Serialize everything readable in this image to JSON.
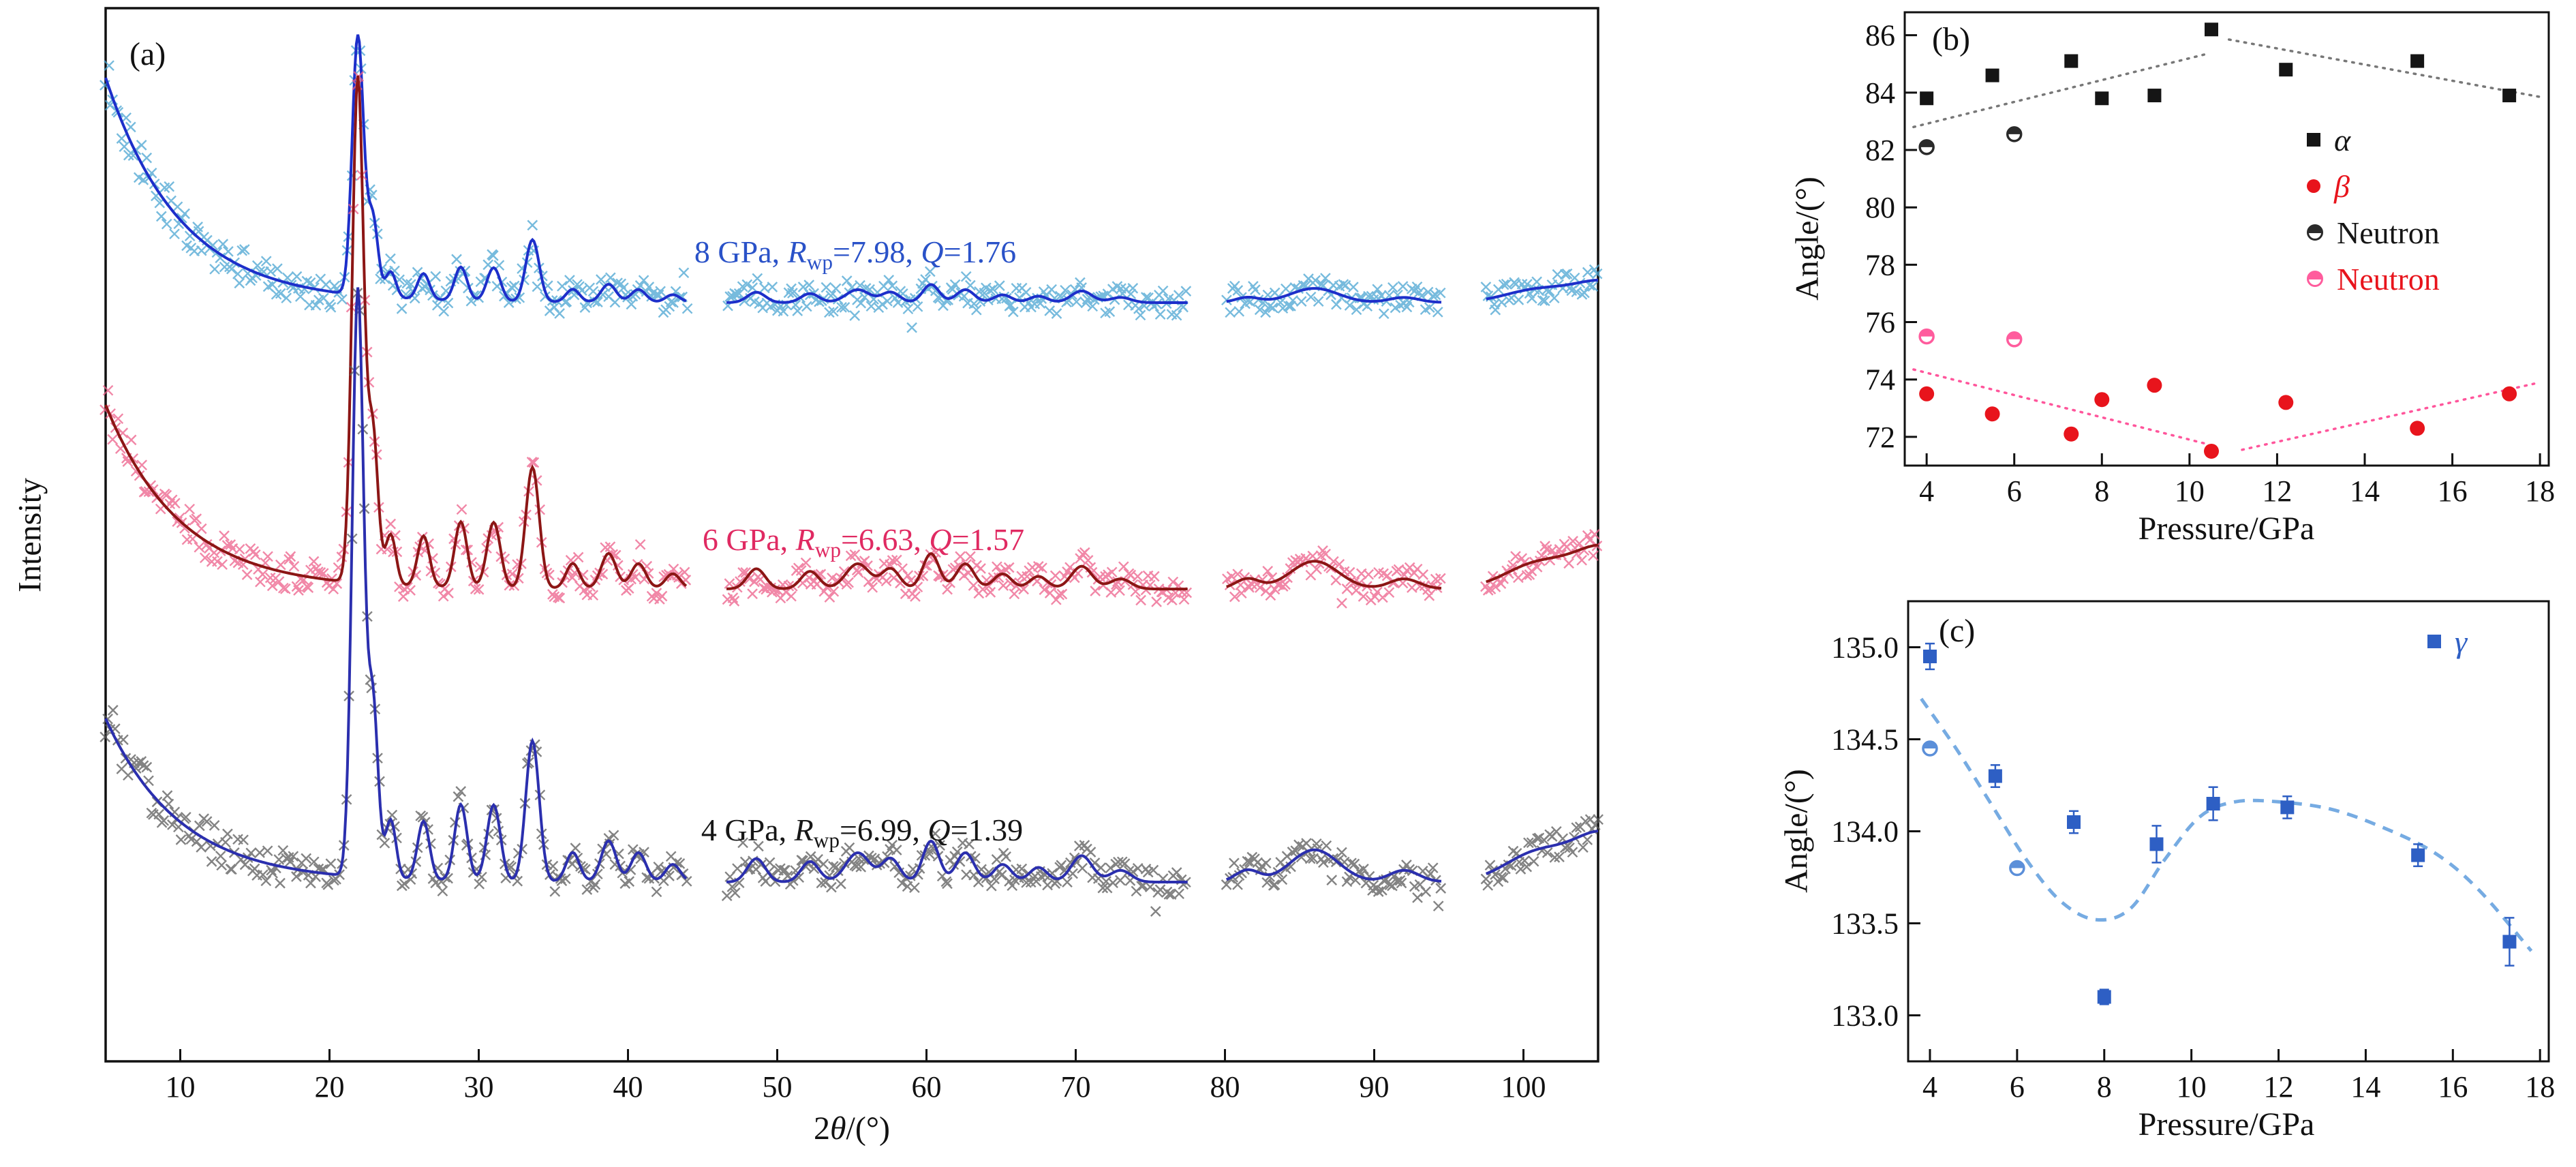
{
  "figure": {
    "background": "#ffffff"
  },
  "chart_data": [
    {
      "id": "a",
      "type": "line",
      "panel_label": "(a)",
      "ylabel": "Intensity",
      "xlabel_segments": [
        {
          "t": "2"
        },
        {
          "t": "θ",
          "style": "italic"
        },
        {
          "t": "/(°)"
        }
      ],
      "xlim": [
        5,
        105
      ],
      "xticks": [
        10,
        20,
        30,
        40,
        50,
        60,
        70,
        80,
        90,
        100
      ],
      "gaps": [
        [
          44.0,
          46.6
        ],
        [
          77.5,
          80.0
        ],
        [
          94.5,
          97.4
        ]
      ],
      "decay_tau": 5,
      "sample_step_scatter": 0.17,
      "sample_step_line": 0.1,
      "noise": {
        "base": 0.013,
        "low_angle_extra": 0.01,
        "tau": 12,
        "outlier_prob": 0.018,
        "outlier_mult": 2.6
      },
      "peaks": [
        [
          21.9,
          1.0,
          0.38
        ],
        [
          22.9,
          0.3,
          0.35
        ],
        [
          24.1,
          0.1,
          0.35
        ],
        [
          26.3,
          0.1,
          0.4
        ],
        [
          28.8,
          0.13,
          0.42
        ],
        [
          31.0,
          0.13,
          0.45
        ],
        [
          33.6,
          0.24,
          0.45
        ],
        [
          36.3,
          0.05,
          0.45
        ],
        [
          38.7,
          0.07,
          0.5
        ],
        [
          40.7,
          0.05,
          0.5
        ],
        [
          43.0,
          0.03,
          0.5
        ],
        [
          48.6,
          0.04,
          0.6
        ],
        [
          52.2,
          0.035,
          0.6
        ],
        [
          55.4,
          0.05,
          0.8
        ],
        [
          57.6,
          0.04,
          0.6
        ],
        [
          60.3,
          0.07,
          0.55
        ],
        [
          62.6,
          0.05,
          0.6
        ],
        [
          65.1,
          0.03,
          0.6
        ],
        [
          67.5,
          0.025,
          0.6
        ],
        [
          70.4,
          0.045,
          0.7
        ],
        [
          73.0,
          0.02,
          0.7
        ],
        [
          81.5,
          0.02,
          0.8
        ],
        [
          86.0,
          0.055,
          1.6
        ],
        [
          92.0,
          0.02,
          1.0
        ],
        [
          101.0,
          0.05,
          2.2
        ],
        [
          105.5,
          0.08,
          2.0
        ]
      ],
      "series": [
        {
          "name": "8 GPa",
          "pressure_gpa": 8,
          "rwp": 7.98,
          "q": 1.76,
          "annotation_segments": [
            {
              "t": "8 GPa, "
            },
            {
              "t": "R",
              "style": "italic"
            },
            {
              "t": "wp",
              "style": "sub"
            },
            {
              "t": "=7.98, "
            },
            {
              "t": "Q",
              "style": "italic"
            },
            {
              "t": "=1.76"
            }
          ],
          "annotation_color": "#2a52c8",
          "scatter_color": "#4aa4d2",
          "line_color": "#1d2fca",
          "baseline": 0.2796,
          "decay": 0.2136,
          "amp": 0.246
        },
        {
          "name": "6 GPa",
          "pressure_gpa": 6,
          "rwp": 6.63,
          "q": 1.57,
          "annotation_segments": [
            {
              "t": "6 GPa, "
            },
            {
              "t": "R",
              "style": "italic"
            },
            {
              "t": "wp",
              "style": "sub"
            },
            {
              "t": "=6.63, "
            },
            {
              "t": "Q",
              "style": "italic"
            },
            {
              "t": "=1.57"
            }
          ],
          "annotation_color": "#e02a62",
          "scatter_color": "#ec5f89",
          "line_color": "#8c1615",
          "baseline": 0.5515,
          "decay": 0.1748,
          "amp": 0.479
        },
        {
          "name": "4 GPa",
          "pressure_gpa": 4,
          "rwp": 6.99,
          "q": 1.39,
          "annotation_segments": [
            {
              "t": "4 GPa, "
            },
            {
              "t": "R",
              "style": "italic"
            },
            {
              "t": "wp",
              "style": "sub"
            },
            {
              "t": "=6.99, "
            },
            {
              "t": "Q",
              "style": "italic"
            },
            {
              "t": "=1.39"
            }
          ],
          "annotation_color": "#161616",
          "scatter_color": "#5a5a5a",
          "line_color": "#2b2fae",
          "baseline": 0.8298,
          "decay": 0.1553,
          "amp": 0.5566
        }
      ]
    },
    {
      "id": "b",
      "type": "scatter",
      "panel_label": "(b)",
      "xlabel": "Pressure/GPa",
      "ylabel": "Angle/(°)",
      "xlim": [
        3.5,
        18.2
      ],
      "ylim": [
        71.0,
        86.8
      ],
      "xticks": [
        4,
        6,
        8,
        10,
        12,
        14,
        16,
        18
      ],
      "yticks": [
        72,
        74,
        76,
        78,
        80,
        82,
        84,
        86
      ],
      "legend_position": "right",
      "series": [
        {
          "name": "α",
          "italic": true,
          "marker": "square",
          "color": "#151515",
          "label_color": "#151515",
          "x": [
            4,
            5.5,
            7.3,
            8,
            9.2,
            10.5,
            12.2,
            15.2,
            17.3
          ],
          "y": [
            83.8,
            84.6,
            85.1,
            83.8,
            83.9,
            86.2,
            84.8,
            85.1,
            83.9
          ]
        },
        {
          "name": "β",
          "italic": true,
          "marker": "circle",
          "color": "#e8141c",
          "label_color": "#e8141c",
          "x": [
            4,
            5.5,
            7.3,
            8,
            9.2,
            10.5,
            12.2,
            15.2,
            17.3
          ],
          "y": [
            73.5,
            72.8,
            72.1,
            73.3,
            73.8,
            71.5,
            73.2,
            72.3,
            73.5
          ]
        },
        {
          "name": "Neutron",
          "italic": false,
          "marker": "half-circle",
          "color": "#2a2a2a",
          "label_color": "#151515",
          "x": [
            4,
            6
          ],
          "y": [
            82.1,
            82.55
          ]
        },
        {
          "name": "Neutron",
          "italic": false,
          "marker": "half-circle",
          "color": "#ff5c9d",
          "label_color": "#e8141c",
          "x": [
            4,
            6
          ],
          "y": [
            75.5,
            75.4
          ]
        }
      ],
      "trendlines": [
        {
          "color": "#777777",
          "points": [
            [
              3.7,
              82.8
            ],
            [
              10.4,
              85.35
            ]
          ]
        },
        {
          "color": "#777777",
          "points": [
            [
              10.9,
              85.85
            ],
            [
              18.0,
              83.85
            ]
          ]
        },
        {
          "color": "#ff559b",
          "points": [
            [
              3.7,
              74.35
            ],
            [
              10.4,
              71.75
            ]
          ]
        },
        {
          "color": "#ff559b",
          "points": [
            [
              11.2,
              71.55
            ],
            [
              18.0,
              73.9
            ]
          ]
        }
      ]
    },
    {
      "id": "c",
      "type": "scatter",
      "panel_label": "(c)",
      "xlabel": "Pressure/GPa",
      "ylabel": "Angle/(°)",
      "xlim": [
        3.5,
        18.2
      ],
      "ylim": [
        132.75,
        135.25
      ],
      "xticks": [
        4,
        6,
        8,
        10,
        12,
        14,
        16,
        18
      ],
      "yticks": [
        133.0,
        133.5,
        134.0,
        134.5,
        135.0
      ],
      "ytick_labels": [
        "133.0",
        "133.5",
        "134.0",
        "134.5",
        "135.0"
      ],
      "legend_position": "top-right",
      "series": [
        {
          "name": "γ",
          "italic": true,
          "marker": "square",
          "color": "#2e5fc4",
          "label_color": "#2e5fc4",
          "x": [
            4,
            5.5,
            7.3,
            8,
            9.2,
            10.5,
            12.2,
            15.2,
            17.3
          ],
          "y": [
            134.95,
            134.3,
            134.05,
            133.1,
            133.93,
            134.15,
            134.13,
            133.87,
            133.4
          ],
          "yerr": [
            0.07,
            0.06,
            0.06,
            0.04,
            0.1,
            0.09,
            0.06,
            0.06,
            0.13
          ]
        },
        {
          "name": "Neutron",
          "legend": false,
          "italic": false,
          "marker": "half-circle",
          "color": "#5b8fd9",
          "label_color": "#2e5fc4",
          "x": [
            4,
            6
          ],
          "y": [
            134.45,
            133.8
          ]
        }
      ],
      "curve": {
        "color": "#6fa6e0",
        "dash": "16 12",
        "points": [
          [
            3.8,
            134.72
          ],
          [
            4.6,
            134.45
          ],
          [
            5.4,
            134.15
          ],
          [
            6.2,
            133.85
          ],
          [
            7.0,
            133.62
          ],
          [
            7.8,
            133.52
          ],
          [
            8.6,
            133.58
          ],
          [
            9.4,
            133.85
          ],
          [
            10.2,
            134.08
          ],
          [
            11.0,
            134.16
          ],
          [
            12.0,
            134.16
          ],
          [
            13.2,
            134.12
          ],
          [
            14.4,
            134.02
          ],
          [
            15.6,
            133.88
          ],
          [
            16.6,
            133.68
          ],
          [
            17.8,
            133.35
          ]
        ]
      }
    }
  ]
}
